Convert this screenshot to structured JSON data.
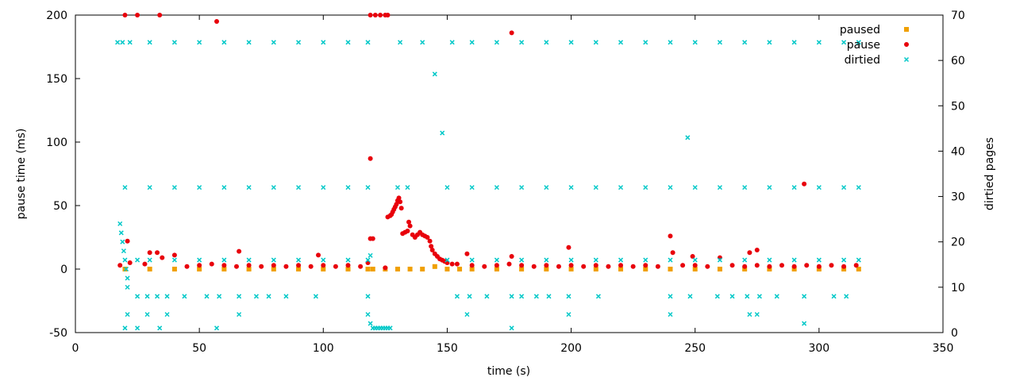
{
  "chart_data": {
    "type": "scatter",
    "xlabel": "time (s)",
    "ylabel": "pause time (ms)",
    "y2label": "dirtied pages",
    "xlim": [
      0,
      350
    ],
    "ylim": [
      -50,
      200
    ],
    "y2lim": [
      0,
      70
    ],
    "x_ticks": [
      "0",
      "50",
      "100",
      "150",
      "200",
      "250",
      "300",
      "350"
    ],
    "y_ticks": [
      "-50",
      "0",
      "50",
      "100",
      "150",
      "200"
    ],
    "y2_ticks": [
      "0",
      "10",
      "20",
      "30",
      "40",
      "50",
      "60",
      "70"
    ],
    "legend_position": "top-right",
    "series": [
      {
        "name": "paused",
        "axis": "y",
        "color": "#f0a000",
        "marker": "square",
        "points": [
          [
            20,
            0
          ],
          [
            30,
            0
          ],
          [
            40,
            0
          ],
          [
            50,
            0
          ],
          [
            60,
            0
          ],
          [
            70,
            0
          ],
          [
            80,
            0
          ],
          [
            90,
            0
          ],
          [
            100,
            0
          ],
          [
            110,
            0
          ],
          [
            118,
            0
          ],
          [
            120,
            0
          ],
          [
            125,
            0
          ],
          [
            130,
            0
          ],
          [
            135,
            0
          ],
          [
            140,
            0
          ],
          [
            145,
            2
          ],
          [
            150,
            0
          ],
          [
            155,
            0
          ],
          [
            160,
            0
          ],
          [
            170,
            0
          ],
          [
            180,
            0
          ],
          [
            190,
            0
          ],
          [
            200,
            0
          ],
          [
            210,
            0
          ],
          [
            220,
            0
          ],
          [
            230,
            0
          ],
          [
            240,
            0
          ],
          [
            250,
            0
          ],
          [
            260,
            0
          ],
          [
            270,
            0
          ],
          [
            280,
            0
          ],
          [
            290,
            0
          ],
          [
            300,
            0
          ],
          [
            310,
            0
          ],
          [
            316,
            0
          ]
        ]
      },
      {
        "name": "pause",
        "axis": "y",
        "color": "#e8000b",
        "marker": "dot",
        "points": [
          [
            20,
            200
          ],
          [
            25,
            200
          ],
          [
            34,
            200
          ],
          [
            57,
            195
          ],
          [
            176,
            186
          ],
          [
            119,
            200
          ],
          [
            121,
            200
          ],
          [
            123,
            200
          ],
          [
            125,
            200
          ],
          [
            126,
            200
          ],
          [
            119,
            87
          ],
          [
            294,
            67
          ],
          [
            119,
            24
          ],
          [
            120,
            24
          ],
          [
            21,
            22
          ],
          [
            240,
            26
          ],
          [
            199,
            17
          ],
          [
            272,
            13
          ],
          [
            275,
            15
          ],
          [
            33,
            13
          ],
          [
            66,
            14
          ],
          [
            125,
            1
          ],
          [
            18,
            3
          ],
          [
            22,
            5
          ],
          [
            28,
            4
          ],
          [
            30,
            13
          ],
          [
            35,
            9
          ],
          [
            40,
            11
          ],
          [
            45,
            2
          ],
          [
            50,
            3
          ],
          [
            55,
            4
          ],
          [
            60,
            3
          ],
          [
            65,
            2
          ],
          [
            70,
            3
          ],
          [
            75,
            2
          ],
          [
            80,
            3
          ],
          [
            85,
            2
          ],
          [
            90,
            3
          ],
          [
            95,
            2
          ],
          [
            98,
            11
          ],
          [
            100,
            3
          ],
          [
            105,
            2
          ],
          [
            110,
            3
          ],
          [
            115,
            2
          ],
          [
            118,
            5
          ],
          [
            126,
            41
          ],
          [
            127,
            42
          ],
          [
            127.5,
            43
          ],
          [
            128,
            45
          ],
          [
            128.5,
            47
          ],
          [
            129,
            49
          ],
          [
            129.5,
            51
          ],
          [
            130,
            54
          ],
          [
            130.5,
            56
          ],
          [
            131,
            53
          ],
          [
            131.5,
            48
          ],
          [
            132,
            28
          ],
          [
            133,
            29
          ],
          [
            134,
            30
          ],
          [
            134.5,
            37
          ],
          [
            135,
            34
          ],
          [
            136,
            27
          ],
          [
            137,
            25
          ],
          [
            138,
            27
          ],
          [
            139,
            29
          ],
          [
            140,
            27
          ],
          [
            141,
            26
          ],
          [
            142,
            25
          ],
          [
            143,
            22
          ],
          [
            143.5,
            18
          ],
          [
            144,
            15
          ],
          [
            145,
            12
          ],
          [
            146,
            10
          ],
          [
            147,
            8
          ],
          [
            148,
            7
          ],
          [
            149,
            6
          ],
          [
            150,
            5
          ],
          [
            152,
            4
          ],
          [
            154,
            4
          ],
          [
            158,
            12
          ],
          [
            160,
            3
          ],
          [
            165,
            2
          ],
          [
            170,
            3
          ],
          [
            175,
            4
          ],
          [
            176,
            10
          ],
          [
            180,
            3
          ],
          [
            185,
            2
          ],
          [
            190,
            3
          ],
          [
            195,
            2
          ],
          [
            200,
            3
          ],
          [
            205,
            2
          ],
          [
            210,
            3
          ],
          [
            215,
            2
          ],
          [
            220,
            3
          ],
          [
            225,
            2
          ],
          [
            230,
            3
          ],
          [
            235,
            2
          ],
          [
            241,
            13
          ],
          [
            245,
            3
          ],
          [
            249,
            10
          ],
          [
            250,
            3
          ],
          [
            255,
            2
          ],
          [
            260,
            9
          ],
          [
            265,
            3
          ],
          [
            270,
            2
          ],
          [
            275,
            3
          ],
          [
            280,
            2
          ],
          [
            285,
            3
          ],
          [
            290,
            2
          ],
          [
            295,
            3
          ],
          [
            300,
            2
          ],
          [
            305,
            3
          ],
          [
            310,
            2
          ],
          [
            315,
            3
          ]
        ]
      },
      {
        "name": "dirtied",
        "axis": "y2",
        "color": "#00c8c8",
        "marker": "cross",
        "points": [
          [
            17,
            64
          ],
          [
            19,
            64
          ],
          [
            22,
            64
          ],
          [
            30,
            64
          ],
          [
            40,
            64
          ],
          [
            50,
            64
          ],
          [
            60,
            64
          ],
          [
            70,
            64
          ],
          [
            80,
            64
          ],
          [
            90,
            64
          ],
          [
            100,
            64
          ],
          [
            110,
            64
          ],
          [
            118,
            64
          ],
          [
            131,
            64
          ],
          [
            140,
            64
          ],
          [
            152,
            64
          ],
          [
            160,
            64
          ],
          [
            170,
            64
          ],
          [
            180,
            64
          ],
          [
            190,
            64
          ],
          [
            200,
            64
          ],
          [
            210,
            64
          ],
          [
            220,
            64
          ],
          [
            230,
            64
          ],
          [
            240,
            64
          ],
          [
            250,
            64
          ],
          [
            260,
            64
          ],
          [
            270,
            64
          ],
          [
            280,
            64
          ],
          [
            290,
            64
          ],
          [
            300,
            64
          ],
          [
            310,
            64
          ],
          [
            316,
            64
          ],
          [
            145,
            57
          ],
          [
            148,
            44
          ],
          [
            247,
            43
          ],
          [
            20,
            32
          ],
          [
            30,
            32
          ],
          [
            40,
            32
          ],
          [
            50,
            32
          ],
          [
            60,
            32
          ],
          [
            70,
            32
          ],
          [
            80,
            32
          ],
          [
            90,
            32
          ],
          [
            100,
            32
          ],
          [
            110,
            32
          ],
          [
            118,
            32
          ],
          [
            130,
            32
          ],
          [
            134,
            32
          ],
          [
            150,
            32
          ],
          [
            160,
            32
          ],
          [
            170,
            32
          ],
          [
            180,
            32
          ],
          [
            190,
            32
          ],
          [
            200,
            32
          ],
          [
            210,
            32
          ],
          [
            220,
            32
          ],
          [
            230,
            32
          ],
          [
            240,
            32
          ],
          [
            250,
            32
          ],
          [
            260,
            32
          ],
          [
            270,
            32
          ],
          [
            280,
            32
          ],
          [
            290,
            32
          ],
          [
            300,
            32
          ],
          [
            310,
            32
          ],
          [
            316,
            32
          ],
          [
            18,
            24
          ],
          [
            18.5,
            22
          ],
          [
            19,
            20
          ],
          [
            19.5,
            18
          ],
          [
            20,
            16
          ],
          [
            20.5,
            14
          ],
          [
            21,
            12
          ],
          [
            21,
            10
          ],
          [
            25,
            16
          ],
          [
            30,
            16
          ],
          [
            40,
            16
          ],
          [
            50,
            16
          ],
          [
            60,
            16
          ],
          [
            70,
            16
          ],
          [
            80,
            16
          ],
          [
            90,
            16
          ],
          [
            100,
            16
          ],
          [
            110,
            16
          ],
          [
            118,
            16
          ],
          [
            119,
            17
          ],
          [
            150,
            16
          ],
          [
            160,
            16
          ],
          [
            170,
            16
          ],
          [
            180,
            16
          ],
          [
            190,
            16
          ],
          [
            200,
            16
          ],
          [
            210,
            16
          ],
          [
            220,
            16
          ],
          [
            230,
            16
          ],
          [
            240,
            16
          ],
          [
            250,
            16
          ],
          [
            260,
            16
          ],
          [
            270,
            16
          ],
          [
            280,
            16
          ],
          [
            290,
            16
          ],
          [
            300,
            16
          ],
          [
            310,
            16
          ],
          [
            316,
            16
          ],
          [
            25,
            8
          ],
          [
            29,
            8
          ],
          [
            33,
            8
          ],
          [
            37,
            8
          ],
          [
            44,
            8
          ],
          [
            53,
            8
          ],
          [
            58,
            8
          ],
          [
            66,
            8
          ],
          [
            73,
            8
          ],
          [
            78,
            8
          ],
          [
            85,
            8
          ],
          [
            97,
            8
          ],
          [
            118,
            8
          ],
          [
            154,
            8
          ],
          [
            159,
            8
          ],
          [
            166,
            8
          ],
          [
            176,
            8
          ],
          [
            180,
            8
          ],
          [
            186,
            8
          ],
          [
            191,
            8
          ],
          [
            199,
            8
          ],
          [
            211,
            8
          ],
          [
            240,
            8
          ],
          [
            248,
            8
          ],
          [
            259,
            8
          ],
          [
            265,
            8
          ],
          [
            271,
            8
          ],
          [
            276,
            8
          ],
          [
            283,
            8
          ],
          [
            294,
            8
          ],
          [
            306,
            8
          ],
          [
            311,
            8
          ],
          [
            21,
            4
          ],
          [
            29,
            4
          ],
          [
            37,
            4
          ],
          [
            66,
            4
          ],
          [
            118,
            4
          ],
          [
            158,
            4
          ],
          [
            199,
            4
          ],
          [
            240,
            4
          ],
          [
            272,
            4
          ],
          [
            275,
            4
          ],
          [
            20,
            1
          ],
          [
            25,
            1
          ],
          [
            34,
            1
          ],
          [
            57,
            1
          ],
          [
            176,
            1
          ],
          [
            294,
            2
          ],
          [
            119,
            2
          ],
          [
            120,
            1
          ],
          [
            121,
            1
          ],
          [
            122,
            1
          ],
          [
            123,
            1
          ],
          [
            124,
            1
          ],
          [
            125,
            1
          ],
          [
            126,
            1
          ],
          [
            127,
            1
          ]
        ]
      }
    ]
  }
}
